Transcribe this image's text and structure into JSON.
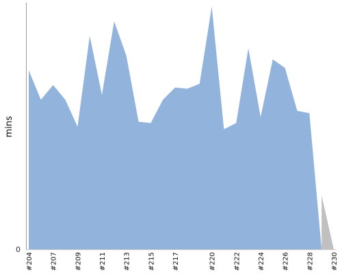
{
  "chart_data": {
    "type": "area",
    "ylabel": "mins",
    "ytick_labels": [
      "0"
    ],
    "ylim": [
      0,
      100
    ],
    "x_tick_labels": [
      "#204",
      "#207",
      "#209",
      "#211",
      "#213",
      "#215",
      "#217",
      "#220",
      "#222",
      "#224",
      "#226",
      "#228",
      "#230"
    ],
    "x": [
      "#204",
      "#205",
      "#207",
      "#208",
      "#209",
      "#210",
      "#211",
      "#212",
      "#213",
      "#214",
      "#215",
      "#216",
      "#217",
      "#218",
      "#219",
      "#220",
      "#221",
      "#222",
      "#223",
      "#224",
      "#225",
      "#226",
      "#227",
      "#228",
      "#229",
      "#230"
    ],
    "series": [
      {
        "color": "#92b3db",
        "values": [
          73,
          61,
          67,
          61,
          50,
          87,
          63,
          93,
          79,
          52,
          51.5,
          61,
          66,
          65.5,
          67.5,
          99,
          49,
          51.5,
          82,
          54,
          77.5,
          74,
          56.5,
          55.5,
          0,
          null
        ]
      },
      {
        "color": "#c0c0c0",
        "values": [
          null,
          null,
          null,
          null,
          null,
          null,
          null,
          null,
          null,
          null,
          null,
          null,
          null,
          null,
          null,
          null,
          null,
          null,
          null,
          null,
          null,
          null,
          null,
          null,
          22,
          0
        ]
      }
    ],
    "grid": false
  }
}
